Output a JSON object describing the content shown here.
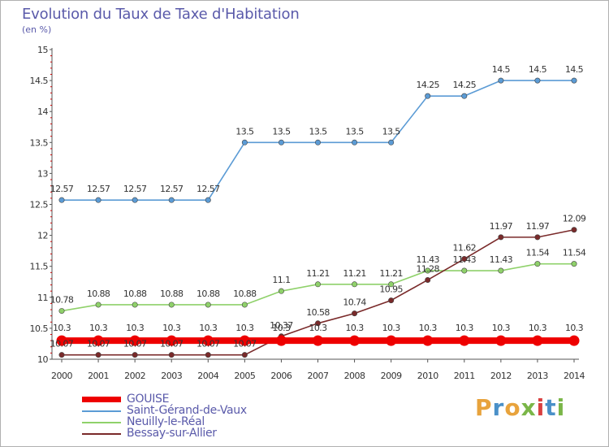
{
  "header": {
    "title": "Evolution du Taux de Taxe d'Habitation",
    "unit": "(en %)"
  },
  "logo": {
    "letters": [
      "P",
      "r",
      "o",
      "x",
      "i",
      "t",
      "i"
    ],
    "colors": [
      "#e8a33c",
      "#4a90c8",
      "#e8a33c",
      "#7ab648",
      "#d94040",
      "#4a90c8",
      "#7ab648"
    ]
  },
  "chart_data": {
    "type": "line",
    "title": "Evolution du Taux de Taxe d'Habitation",
    "ylabel": "(en %)",
    "xlabel": "",
    "x": [
      "2000",
      "2001",
      "2002",
      "2003",
      "2004",
      "2005",
      "2006",
      "2007",
      "2008",
      "2009",
      "2010",
      "2011",
      "2012",
      "2013",
      "2014"
    ],
    "ylim": [
      10,
      15
    ],
    "yticks": [
      "10",
      "10.5",
      "11",
      "11.5",
      "12",
      "12.5",
      "13",
      "13.5",
      "14",
      "14.5",
      "15"
    ],
    "grid": false,
    "legend_position": "bottom-left",
    "series": [
      {
        "name": "GOUISE",
        "color": "#ee0000",
        "values": [
          10.3,
          10.3,
          10.3,
          10.3,
          10.3,
          10.3,
          10.3,
          10.3,
          10.3,
          10.3,
          10.3,
          10.3,
          10.3,
          10.3,
          10.3
        ],
        "labels": [
          "10.3",
          "10.3",
          "10.3",
          "10.3",
          "10.3",
          "10.3",
          "10.3",
          "10.3",
          "10.3",
          "10.3",
          "10.3",
          "10.3",
          "10.3",
          "10.3",
          "10.3"
        ]
      },
      {
        "name": "Saint-Gérand-de-Vaux",
        "color": "#5b9bd5",
        "values": [
          12.57,
          12.57,
          12.57,
          12.57,
          12.57,
          13.5,
          13.5,
          13.5,
          13.5,
          13.5,
          14.25,
          14.25,
          14.5,
          14.5,
          14.5
        ],
        "labels": [
          "12.57",
          "12.57",
          "12.57",
          "12.57",
          "12.57",
          "13.5",
          "13.5",
          "13.5",
          "13.5",
          "13.5",
          "14.25",
          "14.25",
          "14.5",
          "14.5",
          "14.5"
        ]
      },
      {
        "name": "Neuilly-le-Réal",
        "color": "#8fd16a",
        "values": [
          10.78,
          10.88,
          10.88,
          10.88,
          10.88,
          10.88,
          11.1,
          11.21,
          11.21,
          11.21,
          11.43,
          11.43,
          11.43,
          11.54,
          11.54
        ],
        "labels": [
          "10.78",
          "10.88",
          "10.88",
          "10.88",
          "10.88",
          "10.88",
          "11.1",
          "11.21",
          "11.21",
          "11.21",
          "11.43",
          "11.43",
          "11.43",
          "11.54",
          "11.54"
        ]
      },
      {
        "name": "Bessay-sur-Allier",
        "color": "#7a2a2a",
        "values": [
          10.07,
          10.07,
          10.07,
          10.07,
          10.07,
          10.07,
          10.37,
          10.58,
          10.74,
          10.95,
          11.28,
          11.62,
          11.97,
          11.97,
          12.09
        ],
        "labels": [
          "10.07",
          "10.07",
          "10.07",
          "10.07",
          "10.07",
          "10.07",
          "10.37",
          "10.58",
          "10.74",
          "10.95",
          "11.28",
          "11.62",
          "11.97",
          "11.97",
          "12.09"
        ]
      }
    ]
  }
}
